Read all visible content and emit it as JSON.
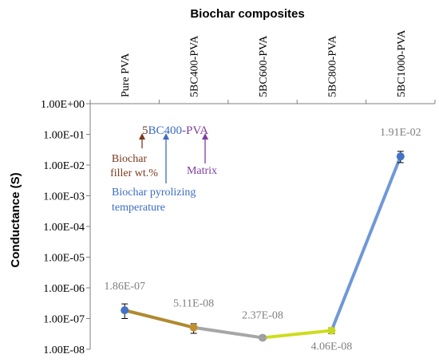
{
  "chart_data": {
    "type": "line",
    "title": "Biochar composites",
    "xlabel": "",
    "ylabel": "Conductance (S)",
    "yscale": "log",
    "ylim": [
      1e-08,
      1
    ],
    "yticks": [
      {
        "value": 1,
        "label": "1.00E+00"
      },
      {
        "value": 0.1,
        "label": "1.00E-01"
      },
      {
        "value": 0.01,
        "label": "1.00E-02"
      },
      {
        "value": 0.001,
        "label": "1.00E-03"
      },
      {
        "value": 0.0001,
        "label": "1.00E-04"
      },
      {
        "value": 1e-05,
        "label": "1.00E-05"
      },
      {
        "value": 1e-06,
        "label": "1.00E-06"
      },
      {
        "value": 1e-07,
        "label": "1.00E-07"
      },
      {
        "value": 1e-08,
        "label": "1.00E-08"
      }
    ],
    "categories": [
      "Pure PVA",
      "5BC400-PVA",
      "5BC600-PVA",
      "5BC800-PVA",
      "5BC1000-PVA"
    ],
    "values": [
      1.86e-07,
      5.11e-08,
      2.37e-08,
      4.06e-08,
      0.0191
    ],
    "value_labels": [
      "1.86E-07",
      "5.11E-08",
      "2.37E-08",
      "4.06E-08",
      "1.91E-02"
    ],
    "error_bars": [
      {
        "low": 1e-07,
        "high": 3e-07
      },
      {
        "low": 3.3e-08,
        "high": 6.8e-08
      },
      {
        "low": 2e-08,
        "high": 2.8e-08
      },
      {
        "low": 3.2e-08,
        "high": 5e-08
      },
      {
        "low": 0.012,
        "high": 0.028
      }
    ],
    "marker_colors": [
      "#4472c4",
      "#c09030",
      "#a0a0a0",
      "#c8d820",
      "#4472c4"
    ],
    "segment_colors": [
      "#b08a30",
      "#a6a6a6",
      "#cfdc1c",
      "#7098d8"
    ],
    "grid": false,
    "annotation": {
      "code_prefix": "5",
      "code_middle": "BC400",
      "code_suffix": "-PVA",
      "filler_label_line1": "Biochar",
      "filler_label_line2": "filler wt.%",
      "temperature_label_line1": "Biochar pyrolizing",
      "temperature_label_line2": "temperature",
      "matrix_label": "Matrix",
      "filler_color": "#7b3a1f",
      "temperature_color": "#3b6cc4",
      "matrix_color": "#7d3ca0"
    }
  }
}
